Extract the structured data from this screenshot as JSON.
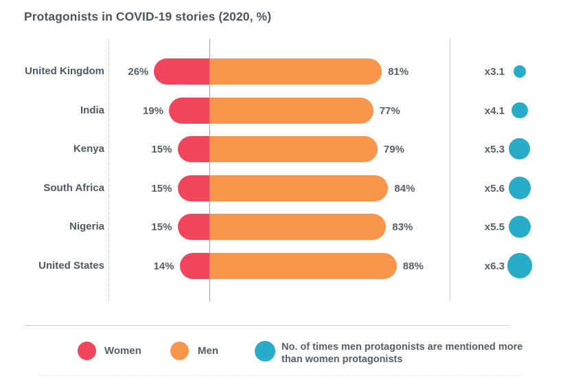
{
  "title": "Protagonists in COVID-19 stories (2020, %)",
  "chart_data": {
    "type": "bar",
    "subtype": "diverging horizontal bars with scaled ratio dots",
    "title": "Protagonists in COVID-19 stories (2020, %)",
    "categories": [
      "United Kingdom",
      "India",
      "Kenya",
      "South Africa",
      "Nigeria",
      "United States"
    ],
    "series": [
      {
        "name": "Women",
        "values": [
          26,
          19,
          15,
          15,
          15,
          14
        ]
      },
      {
        "name": "Men",
        "values": [
          81,
          77,
          79,
          84,
          83,
          88
        ]
      }
    ],
    "ratio": {
      "name": "No. of times men protagonists are mentioned more than women protagonists",
      "values": [
        3.1,
        4.1,
        5.3,
        5.6,
        5.5,
        6.3
      ],
      "labels": [
        "x3.1",
        "x4.1",
        "x5.3",
        "x5.6",
        "x5.5",
        "x6.3"
      ]
    },
    "value_suffix": "%",
    "axis": {
      "gridlines": "one dotted left guide, one solid center baseline, one light right separator",
      "value_labels_shown": true
    },
    "legend_position": "bottom"
  },
  "legend": {
    "women_label": "Women",
    "men_label": "Men",
    "ratio_label": "No. of times men protagonists are mentioned more than women protagonists"
  },
  "colors": {
    "women": "#f2455c",
    "men": "#f9964b",
    "ratio_dot": "#28adc8",
    "text_dark": "#4e5864",
    "text_value": "#555e6a"
  }
}
